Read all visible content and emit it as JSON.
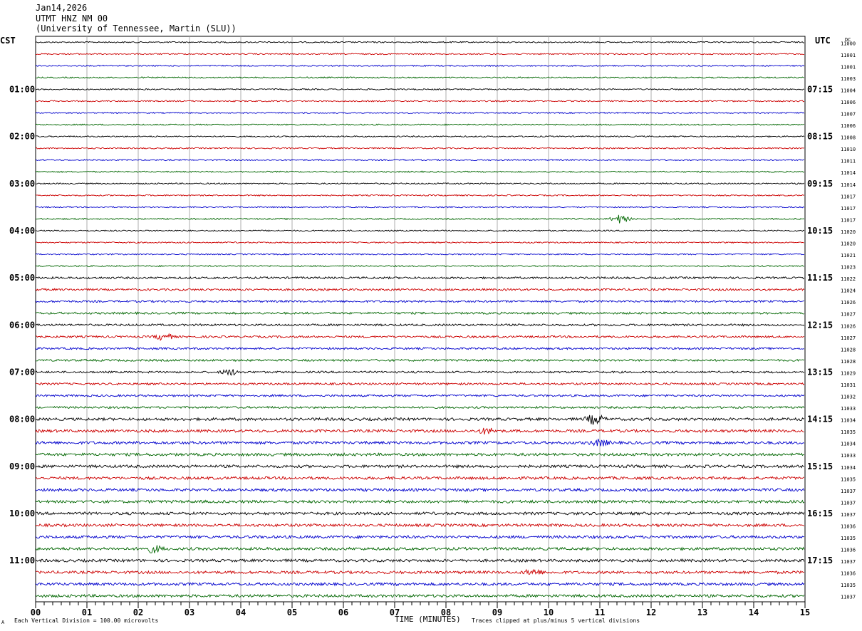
{
  "header": {
    "date": "Jan14,2026",
    "station": "UTMT HNZ NM 00",
    "network": "(University of Tennessee, Martin (SLU))"
  },
  "left_zone": "CST",
  "right_zone": "UTC",
  "dc_label": "DC",
  "footer": {
    "scale": "Each Vertical Division =  100.00 microvolts",
    "xaxis_title": "TIME (MINUTES)",
    "clip_note": "Traces clipped at plus/minus 5 vertical divisions",
    "corner_mark": "A"
  },
  "colors": {
    "cycle": [
      "#000000",
      "#cc0000",
      "#0000cc",
      "#006600"
    ],
    "grid": "#999999"
  },
  "chart_data": {
    "type": "line",
    "title": "UTMT HNZ NM 00",
    "xlabel": "TIME (MINUTES)",
    "xlim": [
      0,
      15
    ],
    "x_ticks": [
      "00",
      "01",
      "02",
      "03",
      "04",
      "05",
      "06",
      "07",
      "08",
      "09",
      "10",
      "11",
      "12",
      "13",
      "14",
      "15"
    ],
    "left_hour_labels": [
      "01:00",
      "02:00",
      "03:00",
      "04:00",
      "05:00",
      "06:00",
      "07:00",
      "08:00",
      "09:00",
      "10:00",
      "11:00"
    ],
    "right_hour_labels": [
      "07:15",
      "08:15",
      "09:15",
      "10:15",
      "11:15",
      "12:15",
      "13:15",
      "14:15",
      "15:15",
      "16:15",
      "17:15"
    ],
    "dc_values": [
      "11000",
      "11001",
      "11001",
      "11003",
      "11004",
      "11006",
      "11007",
      "11006",
      "11008",
      "11010",
      "11011",
      "11014",
      "11014",
      "11017",
      "11017",
      "11017",
      "11020",
      "11020",
      "11021",
      "11023",
      "11022",
      "11024",
      "11026",
      "11027",
      "11026",
      "11027",
      "11028",
      "11028",
      "11029",
      "11031",
      "11032",
      "11033",
      "11034",
      "11035",
      "11034",
      "11033",
      "11034",
      "11035",
      "11037",
      "11037",
      "11037",
      "11036",
      "11035",
      "11036",
      "11037",
      "11036",
      "11035",
      "11037"
    ],
    "trace_count": 48,
    "minutes_per_trace": 15,
    "amplitude_per_division_microvolts": 100.0,
    "clip_divisions": 5,
    "events": [
      {
        "trace": 15,
        "minute": 11.4,
        "amplitude": 3.0
      },
      {
        "trace": 25,
        "minute": 2.5,
        "amplitude": 2.5
      },
      {
        "trace": 28,
        "minute": 3.8,
        "amplitude": 2.0
      },
      {
        "trace": 32,
        "minute": 10.9,
        "amplitude": 3.5
      },
      {
        "trace": 33,
        "minute": 8.8,
        "amplitude": 2.0
      },
      {
        "trace": 34,
        "minute": 11.0,
        "amplitude": 2.2
      },
      {
        "trace": 43,
        "minute": 2.3,
        "amplitude": 2.5
      },
      {
        "trace": 45,
        "minute": 9.7,
        "amplitude": 2.0
      }
    ]
  }
}
